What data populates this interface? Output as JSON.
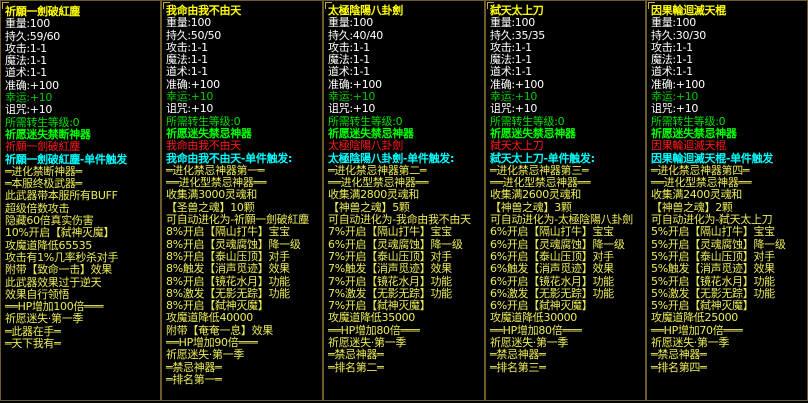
{
  "colors": {
    "title": "#ffff00",
    "stat": "#ffffff",
    "luck": "#00c800",
    "requirement": "#00e000",
    "set_name": "#00ff00",
    "item_red": "#ff1a1a",
    "trigger": "#00ffff",
    "description": "#ecec5a"
  },
  "panels": [
    {
      "lines": [
        {
          "t": "祈願一劍破紅塵",
          "c": "title"
        },
        {
          "t": "重量:100",
          "c": "white"
        },
        {
          "t": "持久:59/60",
          "c": "white"
        },
        {
          "t": "攻击:1-1",
          "c": "white"
        },
        {
          "t": "魔法:1-1",
          "c": "white"
        },
        {
          "t": "道术:1-1",
          "c": "white"
        },
        {
          "t": "准确:+100",
          "c": "white"
        },
        {
          "t": "幸运:+10",
          "c": "green"
        },
        {
          "t": "诅咒:+10",
          "c": "white"
        },
        {
          "t": "所需转生等级:0",
          "c": "lgreen"
        },
        {
          "t": "祈愿迷失禁断神器",
          "c": "bgreen"
        },
        {
          "t": "祈願一劍破紅塵",
          "c": "red"
        },
        {
          "t": "祈願一劍破紅塵-单件触发",
          "c": "cyan"
        },
        {
          "t": "═进化禁断神器═",
          "c": "yellow"
        },
        {
          "t": "═本服终极武器═",
          "c": "yellow"
        },
        {
          "t": "此武器带本服所有BUFF",
          "c": "yellow"
        },
        {
          "t": "超级倍数攻击",
          "c": "yellow"
        },
        {
          "t": "隐藏60倍真实伤害",
          "c": "yellow"
        },
        {
          "t": "10%开启【弑神灭魔】",
          "c": "yellow"
        },
        {
          "t": "攻魔道降低65535",
          "c": "yellow"
        },
        {
          "t": "攻击有1%几率秒杀对手",
          "c": "yellow"
        },
        {
          "t": "附带【致命一击】效果",
          "c": "yellow"
        },
        {
          "t": "此武器效果过于逆天",
          "c": "yellow"
        },
        {
          "t": "效果自行领悟",
          "c": "yellow"
        },
        {
          "t": "══HP增加100倍═══",
          "c": "yellow"
        },
        {
          "t": "祈愿迷失·第一季",
          "c": "yellow"
        },
        {
          "t": "═此器在手═",
          "c": "yellow"
        },
        {
          "t": "═天下我有═",
          "c": "yellow"
        }
      ]
    },
    {
      "lines": [
        {
          "t": "我命由我不由天",
          "c": "title"
        },
        {
          "t": "重量:100",
          "c": "white"
        },
        {
          "t": "持久:50/50",
          "c": "white"
        },
        {
          "t": "攻击:1-1",
          "c": "white"
        },
        {
          "t": "魔法:1-1",
          "c": "white"
        },
        {
          "t": "道术:1-1",
          "c": "white"
        },
        {
          "t": "准确:+100",
          "c": "white"
        },
        {
          "t": "幸运:+10",
          "c": "green"
        },
        {
          "t": "诅咒:+10",
          "c": "white"
        },
        {
          "t": "所需转生等级:0",
          "c": "lgreen"
        },
        {
          "t": "祈愿迷失禁忌神器",
          "c": "bgreen"
        },
        {
          "t": "我命由我不由天",
          "c": "red"
        },
        {
          "t": "我命由我不由天-单件触发:",
          "c": "cyan"
        },
        {
          "t": "═进化禁忌神器第一═",
          "c": "yellow"
        },
        {
          "t": "══进化型禁忌神器══",
          "c": "yellow"
        },
        {
          "t": "收集满3000灵魂和",
          "c": "yellow"
        },
        {
          "t": "【圣兽之魂】10颗",
          "c": "yellow"
        },
        {
          "t": "可自动进化为-祈願一劍破紅塵",
          "c": "yellow"
        },
        {
          "t": "8%开启【隔山打牛】宝宝",
          "c": "yellow"
        },
        {
          "t": "8%开启【灵魂腐蚀】降一级",
          "c": "yellow"
        },
        {
          "t": "8%开启【泰山压顶】对手",
          "c": "yellow"
        },
        {
          "t": "8%触发【消声觅迹】效果",
          "c": "yellow"
        },
        {
          "t": "8%开启【镜花水月】功能",
          "c": "yellow"
        },
        {
          "t": "8%激发【无影无踪】功能",
          "c": "yellow"
        },
        {
          "t": "8%开启【弑神灭魔】",
          "c": "yellow"
        },
        {
          "t": "攻魔道降低40000",
          "c": "yellow"
        },
        {
          "t": "附带【奄奄一息】效果",
          "c": "yellow"
        },
        {
          "t": "══HP增加90倍═══",
          "c": "yellow"
        },
        {
          "t": "祈愿迷失·第一季",
          "c": "yellow"
        },
        {
          "t": "═禁忌神器═",
          "c": "yellow"
        },
        {
          "t": "═排名第一═",
          "c": "yellow"
        }
      ]
    },
    {
      "lines": [
        {
          "t": "太極陰陽八卦劍",
          "c": "title"
        },
        {
          "t": "重量:100",
          "c": "white"
        },
        {
          "t": "持久:40/40",
          "c": "white"
        },
        {
          "t": "攻击:1-1",
          "c": "white"
        },
        {
          "t": "魔法:1-1",
          "c": "white"
        },
        {
          "t": "道术:1-1",
          "c": "white"
        },
        {
          "t": "准确:+100",
          "c": "white"
        },
        {
          "t": "幸运:+10",
          "c": "green"
        },
        {
          "t": "诅咒:+10",
          "c": "white"
        },
        {
          "t": "所需转生等级:0",
          "c": "lgreen"
        },
        {
          "t": "祈愿迷失禁忌神器",
          "c": "bgreen"
        },
        {
          "t": "太極陰陽八卦劍",
          "c": "red"
        },
        {
          "t": "太極陰陽八卦劍-单件触发:",
          "c": "cyan"
        },
        {
          "t": "═进化禁忌神器第二═",
          "c": "yellow"
        },
        {
          "t": "══进化型禁忌神器══",
          "c": "yellow"
        },
        {
          "t": "收集满2800灵魂和",
          "c": "yellow"
        },
        {
          "t": "【神兽之魂】5颗",
          "c": "yellow"
        },
        {
          "t": "可自动进化为-我命由我不由天",
          "c": "yellow"
        },
        {
          "t": "7%开启【隔山打牛】宝宝",
          "c": "yellow"
        },
        {
          "t": "6%开启【灵魂腐蚀】降一级",
          "c": "yellow"
        },
        {
          "t": "7%开启【泰山压顶】对手",
          "c": "yellow"
        },
        {
          "t": "7%触发【消声觅迹】效果",
          "c": "yellow"
        },
        {
          "t": "7%开启【镜花水月】功能",
          "c": "yellow"
        },
        {
          "t": "7%激发【无影无踪】功能",
          "c": "yellow"
        },
        {
          "t": "7%开启【弑神灭魔】",
          "c": "yellow"
        },
        {
          "t": "攻魔道降低35000",
          "c": "yellow"
        },
        {
          "t": "══HP增加80倍═══",
          "c": "yellow"
        },
        {
          "t": "祈愿迷失·第一季",
          "c": "yellow"
        },
        {
          "t": "═禁忌神器═",
          "c": "yellow"
        },
        {
          "t": "═排名第二═",
          "c": "yellow"
        }
      ]
    },
    {
      "lines": [
        {
          "t": "弑天太上刀",
          "c": "title"
        },
        {
          "t": "重量:100",
          "c": "white"
        },
        {
          "t": "持久:35/35",
          "c": "white"
        },
        {
          "t": "攻击:1-1",
          "c": "white"
        },
        {
          "t": "魔法:1-1",
          "c": "white"
        },
        {
          "t": "道术:1-1",
          "c": "white"
        },
        {
          "t": "准确:+100",
          "c": "white"
        },
        {
          "t": "幸运:+10",
          "c": "green"
        },
        {
          "t": "诅咒:+10",
          "c": "white"
        },
        {
          "t": "所需转生等级:0",
          "c": "lgreen"
        },
        {
          "t": "祈愿迷失禁忌神器",
          "c": "bgreen"
        },
        {
          "t": "弑天太上刀",
          "c": "red"
        },
        {
          "t": "弑天太上刀-单件触发:",
          "c": "cyan"
        },
        {
          "t": "═进化禁忌神器第三═",
          "c": "yellow"
        },
        {
          "t": "══进化型禁忌神器══",
          "c": "yellow"
        },
        {
          "t": "收集满2600灵魂和",
          "c": "yellow"
        },
        {
          "t": "【神兽之魂】3颗",
          "c": "yellow"
        },
        {
          "t": "可自动进化为-太極陰陽八卦劍",
          "c": "yellow"
        },
        {
          "t": "6%开启【隔山打牛】宝宝",
          "c": "yellow"
        },
        {
          "t": "6%开启【灵魂腐蚀】降一级",
          "c": "yellow"
        },
        {
          "t": "6%开启【泰山压顶】对手",
          "c": "yellow"
        },
        {
          "t": "6%触发【消声觅迹】效果",
          "c": "yellow"
        },
        {
          "t": "6%开启【镜花水月】功能",
          "c": "yellow"
        },
        {
          "t": "6%激发【无影无踪】功能",
          "c": "yellow"
        },
        {
          "t": "6%开启【弑神灭魔】",
          "c": "yellow"
        },
        {
          "t": "攻魔道降低30000",
          "c": "yellow"
        },
        {
          "t": "══HP增加80倍═══",
          "c": "yellow"
        },
        {
          "t": "祈愿迷失·第一季",
          "c": "yellow"
        },
        {
          "t": "═禁忌神器═",
          "c": "yellow"
        },
        {
          "t": "═排名第三═",
          "c": "yellow"
        }
      ]
    },
    {
      "lines": [
        {
          "t": "因果輪迴滅天棍",
          "c": "title"
        },
        {
          "t": "重量:100",
          "c": "white"
        },
        {
          "t": "持久:30/30",
          "c": "white"
        },
        {
          "t": "攻击:1-1",
          "c": "white"
        },
        {
          "t": "魔法:1-1",
          "c": "white"
        },
        {
          "t": "道术:1-1",
          "c": "white"
        },
        {
          "t": "准确:+100",
          "c": "white"
        },
        {
          "t": "幸运:+10",
          "c": "green"
        },
        {
          "t": "诅咒:+10",
          "c": "white"
        },
        {
          "t": "所需转生等级:0",
          "c": "lgreen"
        },
        {
          "t": "祈愿迷失禁忌神器",
          "c": "bgreen"
        },
        {
          "t": "因果輪迴滅天棍",
          "c": "red"
        },
        {
          "t": "因果輪迴滅天棍-单件触发",
          "c": "cyan"
        },
        {
          "t": "═进化禁忌神器第四═",
          "c": "yellow"
        },
        {
          "t": "══进化型禁忌神器══",
          "c": "yellow"
        },
        {
          "t": "收集满2400灵魂和",
          "c": "yellow"
        },
        {
          "t": "【神兽之魂】2颗",
          "c": "yellow"
        },
        {
          "t": "可自动进化为-弑天太上刀",
          "c": "yellow"
        },
        {
          "t": "5%开启【隔山打牛】宝宝",
          "c": "yellow"
        },
        {
          "t": "5%开启【灵魂腐蚀】降一级",
          "c": "yellow"
        },
        {
          "t": "5%开启【泰山压顶】对手",
          "c": "yellow"
        },
        {
          "t": "5%触发【消声觅迹】效果",
          "c": "yellow"
        },
        {
          "t": "5%开启【镜花水月】功能",
          "c": "yellow"
        },
        {
          "t": "5%激发【无影无踪】功能",
          "c": "yellow"
        },
        {
          "t": "5%开启【弑神灭魔】",
          "c": "yellow"
        },
        {
          "t": "攻魔道降低25000",
          "c": "yellow"
        },
        {
          "t": "══HP增加70倍═══",
          "c": "yellow"
        },
        {
          "t": "祈愿迷失·第一季",
          "c": "yellow"
        },
        {
          "t": "═禁忌神器═",
          "c": "yellow"
        },
        {
          "t": "═排名第四═",
          "c": "yellow"
        }
      ]
    }
  ]
}
